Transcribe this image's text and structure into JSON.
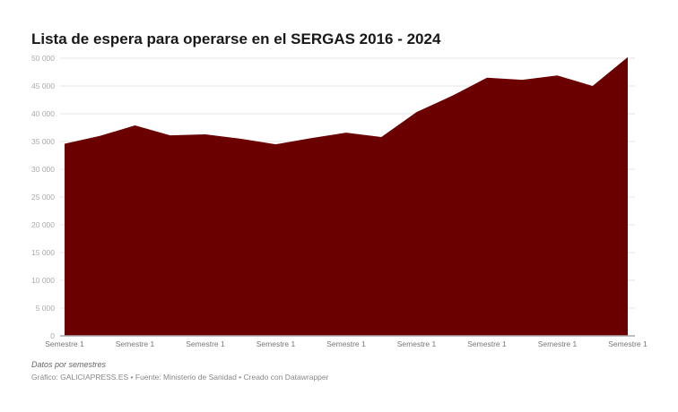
{
  "chart_data": {
    "type": "area",
    "title": "Lista de espera para operarse en el SERGAS 2016 - 2024",
    "x_tick_labels": [
      "Semestre 1",
      "Semestre 1",
      "Semestre 1",
      "Semestre 1",
      "Semestre 1",
      "Semestre 1",
      "Semestre 1",
      "Semestre 1",
      "Semestre 1"
    ],
    "values": [
      34600,
      36000,
      37900,
      36100,
      36300,
      35500,
      34500,
      35600,
      36600,
      35800,
      40300,
      43200,
      46500,
      46100,
      46900,
      45000,
      50200
    ],
    "ylim": [
      0,
      50000
    ],
    "y_ticks": [
      "0",
      "5 000",
      "10 000",
      "15 000",
      "20 000",
      "25 000",
      "30 000",
      "35 000",
      "40 000",
      "45 000",
      "50 000"
    ],
    "grid": true,
    "color": "#6b0000"
  },
  "notes": "Datos por semestres",
  "source": "Gráfico: GALICIAPRESS.ES • Fuente: Ministerio de Sanidad • Creado con Datawrapper"
}
